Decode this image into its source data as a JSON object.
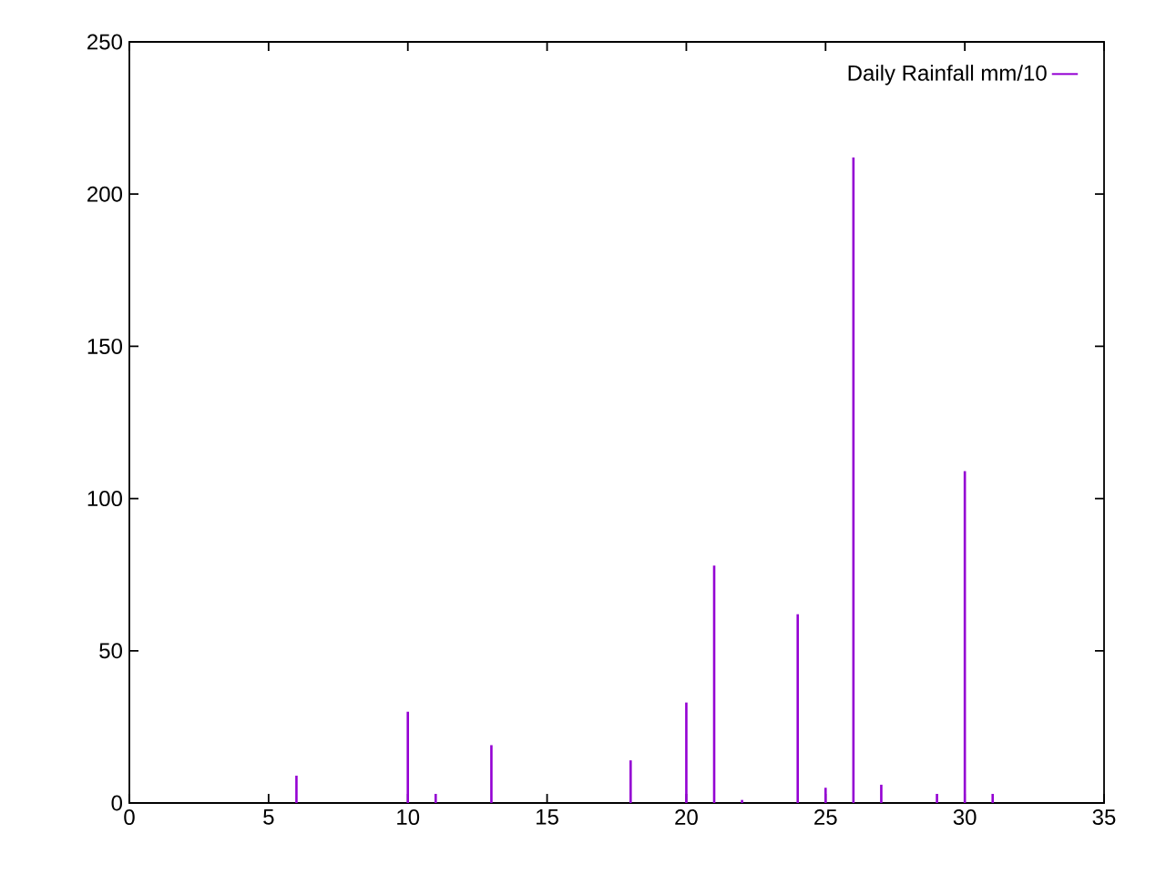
{
  "chart_data": {
    "type": "bar",
    "x": [
      6,
      10,
      11,
      13,
      18,
      20,
      21,
      22,
      24,
      25,
      26,
      27,
      29,
      30,
      31
    ],
    "series": [
      {
        "name": "Daily Rainfall mm/10",
        "color": "#9400d3",
        "values": [
          9,
          30,
          3,
          19,
          14,
          33,
          78,
          1,
          62,
          5,
          212,
          6,
          3,
          109,
          3
        ]
      }
    ],
    "xlim": [
      0,
      35
    ],
    "xticks": [
      0,
      5,
      10,
      15,
      20,
      25,
      30,
      35
    ],
    "ylim": [
      0,
      250
    ],
    "yticks": [
      0,
      50,
      100,
      150,
      200,
      250
    ],
    "legend": "top right"
  }
}
